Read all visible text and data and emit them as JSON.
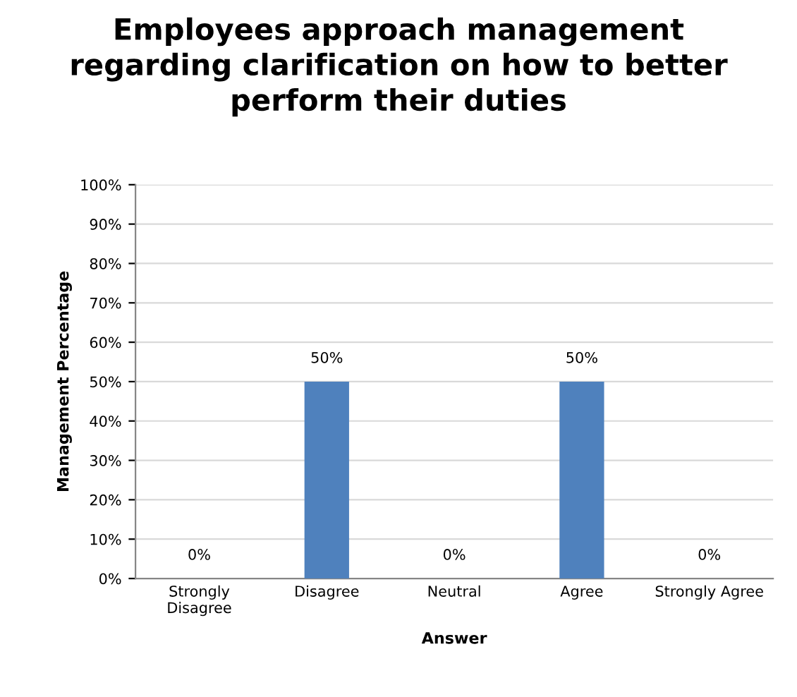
{
  "chart_data": {
    "type": "bar",
    "title": "Employees approach management\nregarding clarification on how to better\nperform their duties",
    "xlabel": "Answer",
    "ylabel": "Management Percentage",
    "categories": [
      "Strongly\nDisagree",
      "Disagree",
      "Neutral",
      "Agree",
      "Strongly Agree"
    ],
    "values": [
      0,
      50,
      0,
      50,
      0
    ],
    "value_labels": [
      "0%",
      "50%",
      "0%",
      "50%",
      "0%"
    ],
    "color": "#4f81bd",
    "ylim": [
      0,
      100
    ],
    "yticks": [
      {
        "value": 0,
        "label": "0%"
      },
      {
        "value": 10,
        "label": "10%"
      },
      {
        "value": 20,
        "label": "20%"
      },
      {
        "value": 30,
        "label": "30%"
      },
      {
        "value": 40,
        "label": "40%"
      },
      {
        "value": 50,
        "label": "50%"
      },
      {
        "value": 60,
        "label": "60%"
      },
      {
        "value": 70,
        "label": "70%"
      },
      {
        "value": 80,
        "label": "80%"
      },
      {
        "value": 90,
        "label": "90%"
      },
      {
        "value": 100,
        "label": "100%"
      }
    ],
    "grid": "y"
  }
}
